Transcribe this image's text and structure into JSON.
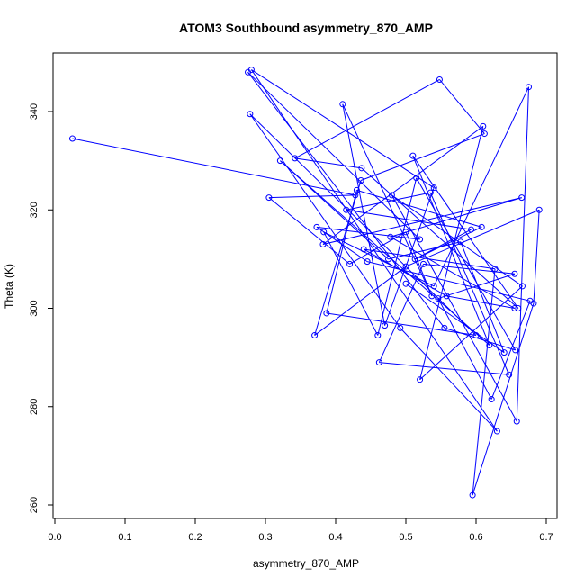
{
  "chart_data": {
    "type": "line",
    "title": "ATOM3 Southbound asymmetry_870_AMP",
    "xlabel": "asymmetry_870_AMP",
    "ylabel": "Theta (K)",
    "xlim": [
      0.0,
      0.7
    ],
    "ylim": [
      260,
      350
    ],
    "xticks": [
      0.0,
      0.1,
      0.2,
      0.3,
      0.4,
      0.5,
      0.6,
      0.7
    ],
    "yticks": [
      260,
      280,
      300,
      320,
      340
    ],
    "xtick_labels": [
      "0.0",
      "0.1",
      "0.2",
      "0.3",
      "0.4",
      "0.5",
      "0.6",
      "0.7"
    ],
    "ytick_labels": [
      "260",
      "280",
      "300",
      "320",
      "340"
    ],
    "grid": false,
    "legend": "none",
    "color": "#0000ff",
    "marker": "open-circle",
    "x": [
      0.025,
      0.428,
      0.305,
      0.42,
      0.5,
      0.537,
      0.41,
      0.47,
      0.54,
      0.28,
      0.63,
      0.492,
      0.278,
      0.6,
      0.387,
      0.43,
      0.608,
      0.513,
      0.593,
      0.415,
      0.535,
      0.647,
      0.462,
      0.525,
      0.655,
      0.546,
      0.622,
      0.677,
      0.445,
      0.373,
      0.52,
      0.275,
      0.555,
      0.656,
      0.515,
      0.46,
      0.383,
      0.54,
      0.675,
      0.658,
      0.48,
      0.666,
      0.52,
      0.61,
      0.382,
      0.665,
      0.478,
      0.655,
      0.558,
      0.44,
      0.627,
      0.595,
      0.682,
      0.69,
      0.5,
      0.37,
      0.436,
      0.612,
      0.548,
      0.342,
      0.437,
      0.66,
      0.51,
      0.619,
      0.321,
      0.475,
      0.578,
      0.64,
      0.5
    ],
    "y": [
      334.5,
      323.0,
      322.5,
      309.0,
      315.5,
      302.5,
      341.5,
      296.5,
      324.5,
      348.5,
      275.0,
      296.0,
      339.5,
      294.5,
      299.0,
      324.0,
      316.5,
      310.0,
      316.0,
      320.0,
      323.5,
      286.5,
      289.0,
      309.0,
      307.0,
      302.0,
      281.5,
      301.5,
      309.5,
      316.5,
      314.0,
      348.0,
      296.0,
      291.5,
      326.5,
      294.5,
      315.5,
      304.5,
      345.0,
      277.0,
      323.0,
      304.5,
      285.5,
      337.0,
      313.0,
      322.5,
      314.5,
      300.0,
      302.5,
      312.0,
      308.0,
      262.0,
      301.0,
      320.0,
      308.5,
      294.5,
      326.0,
      335.5,
      346.5,
      330.5,
      328.5,
      300.0,
      331.0,
      292.5,
      330.0,
      310.0,
      313.5,
      291.0,
      305.0
    ]
  }
}
